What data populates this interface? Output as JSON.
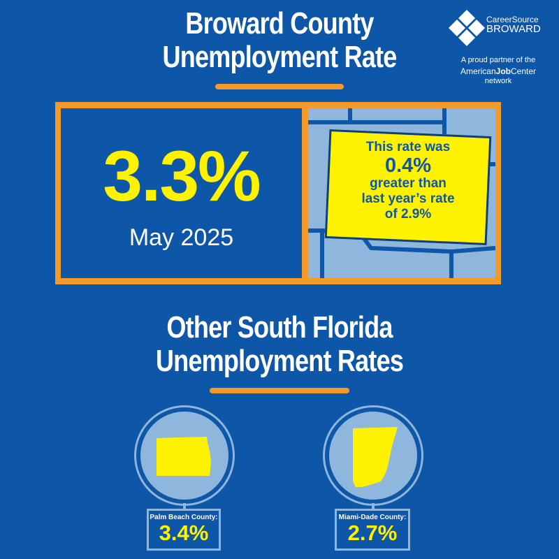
{
  "header": {
    "title_line1": "Broward County",
    "title_line2": "Unemployment Rate"
  },
  "logo": {
    "brand_line1": "CareerSource",
    "brand_line2": "BROWARD",
    "partner_text": "A proud partner of the",
    "ajc_american": "American",
    "ajc_job": "Job",
    "ajc_center": "Center",
    "network_text": "network"
  },
  "broward": {
    "rate": "3.3%",
    "date": "May 2025",
    "note_line1": "This rate was",
    "note_value": "0.4%",
    "note_line3": "greater than",
    "note_line4": "last year’s rate",
    "note_line5": "of 2.9%"
  },
  "section2": {
    "title_line1": "Other South Florida",
    "title_line2": "Unemployment Rates"
  },
  "counties": [
    {
      "name": "Palm Beach County:",
      "rate": "3.4%"
    },
    {
      "name": "Miami-Dade County:",
      "rate": "2.7%"
    }
  ],
  "colors": {
    "background": "#0d56a8",
    "accent_orange": "#f39a2b",
    "highlight_yellow": "#fff200",
    "light_blue": "#8fb6dd"
  }
}
